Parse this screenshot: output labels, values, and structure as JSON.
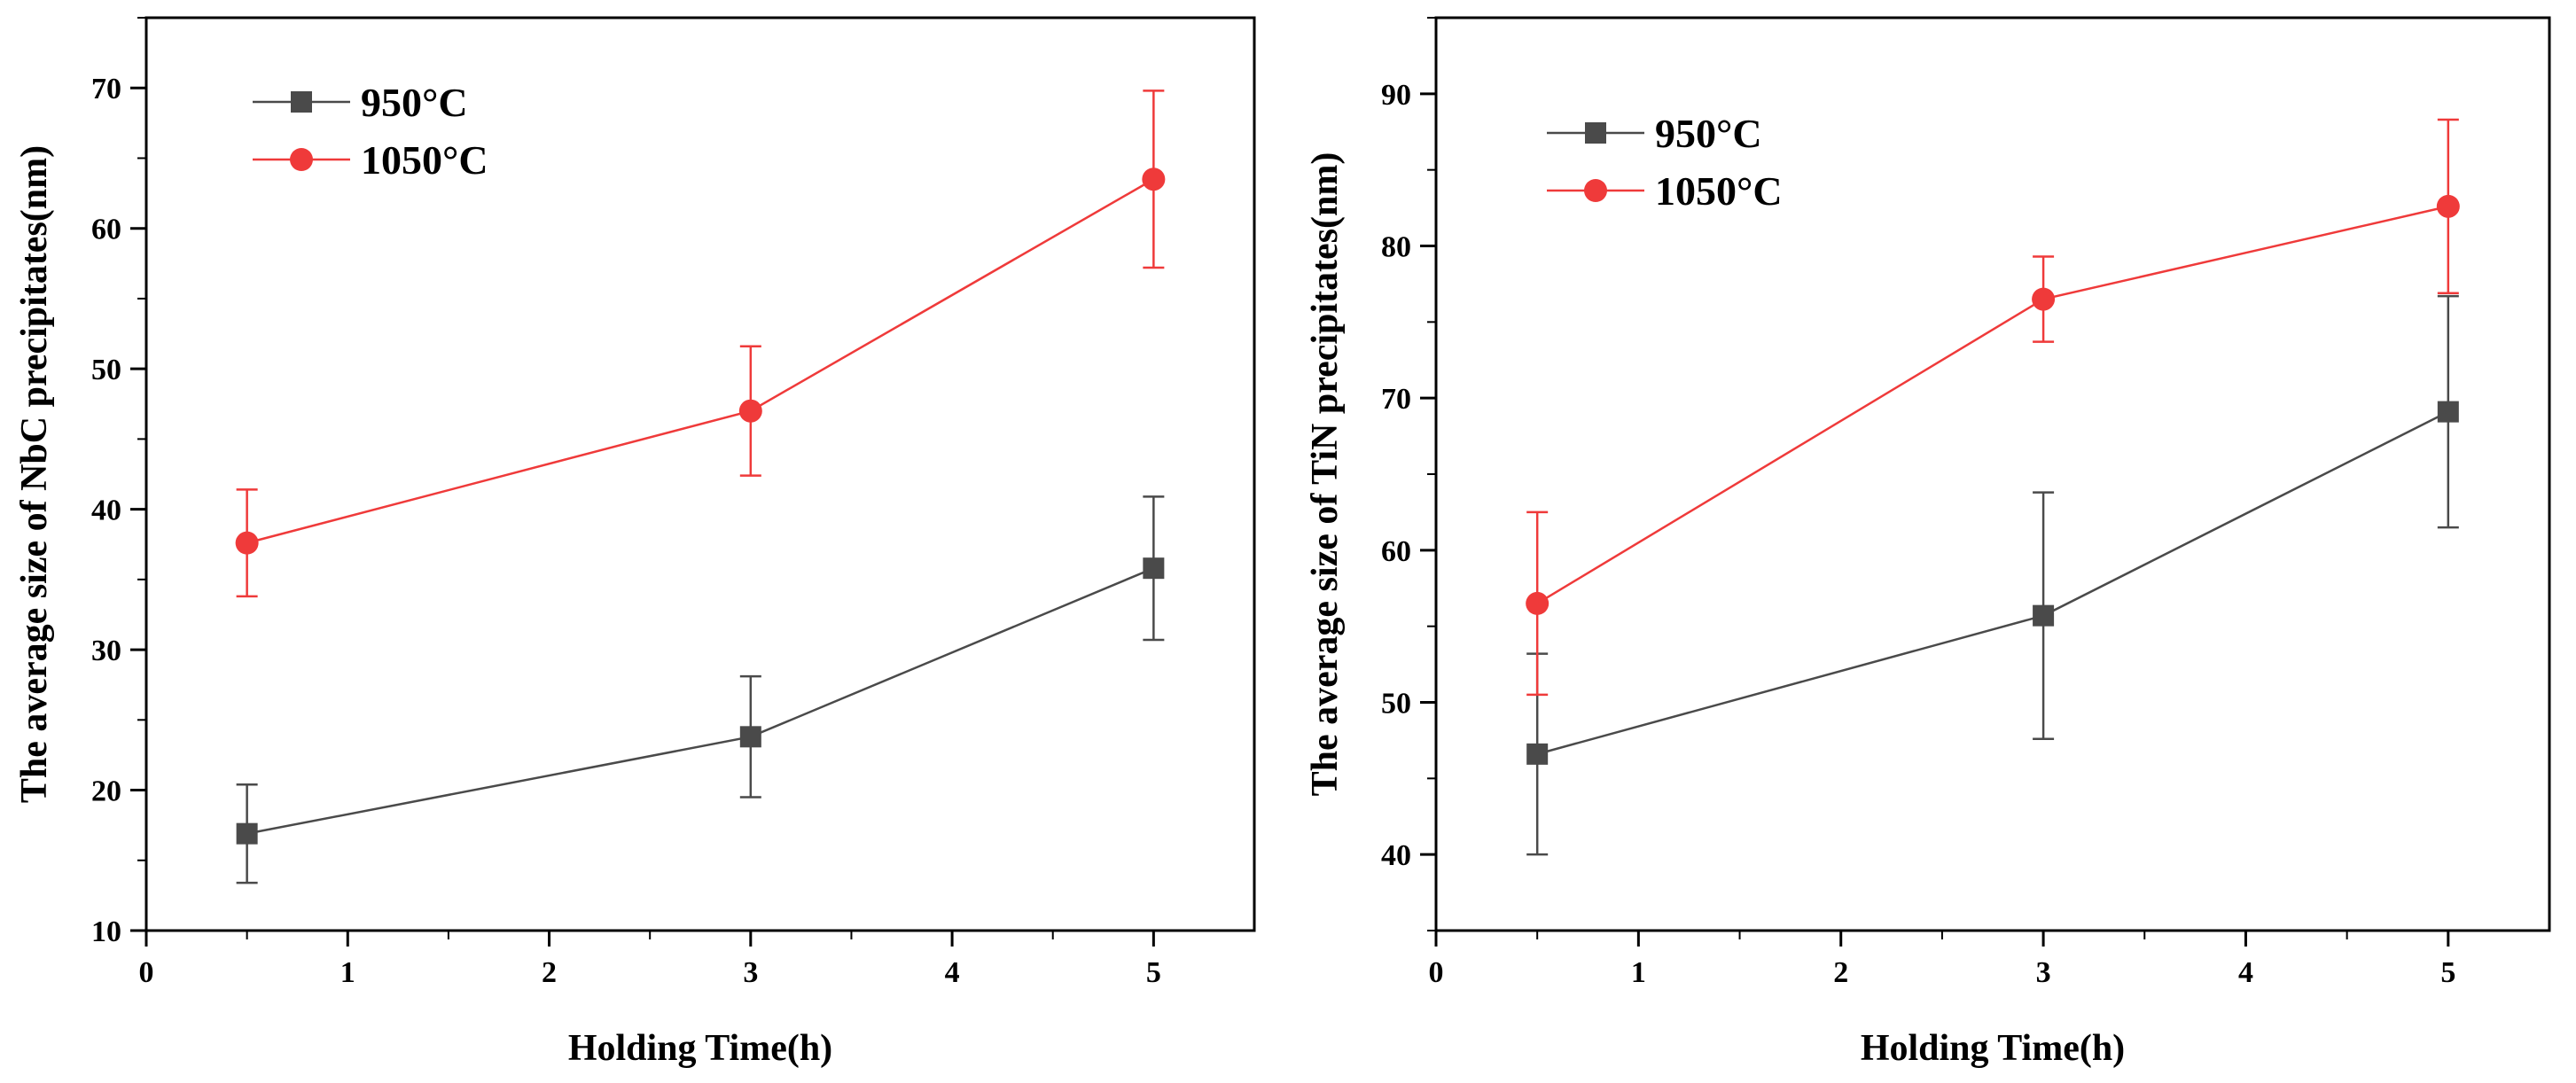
{
  "chart_data": [
    {
      "type": "line",
      "title": "",
      "xlabel": "Holding Time(h)",
      "ylabel": "The average size of NbC precipitates(nm)",
      "xlim": [
        0,
        5.5
      ],
      "ylim": [
        10,
        75
      ],
      "xticks": [
        0,
        1,
        2,
        3,
        4,
        5
      ],
      "yticks": [
        10,
        20,
        30,
        40,
        50,
        60,
        70
      ],
      "grid": false,
      "legend_position": "top-left",
      "x": [
        0.5,
        3,
        5
      ],
      "series": [
        {
          "name": "950°C",
          "color": "#4a4a4a",
          "marker": "square",
          "values": [
            16.9,
            23.8,
            35.8
          ],
          "errors": [
            3.5,
            4.3,
            5.1
          ]
        },
        {
          "name": "1050°C",
          "color": "#ef3a3a",
          "marker": "circle",
          "values": [
            37.6,
            47.0,
            63.5
          ],
          "errors": [
            3.8,
            4.6,
            6.3
          ]
        }
      ]
    },
    {
      "type": "line",
      "title": "",
      "xlabel": "Holding Time(h)",
      "ylabel": "The average size of TiN precipitates(nm)",
      "xlim": [
        0,
        5.5
      ],
      "ylim": [
        35,
        95
      ],
      "xticks": [
        0,
        1,
        2,
        3,
        4,
        5
      ],
      "yticks": [
        40,
        50,
        60,
        70,
        80,
        90
      ],
      "grid": false,
      "legend_position": "top-left",
      "x": [
        0.5,
        3,
        5
      ],
      "series": [
        {
          "name": "950°C",
          "color": "#4a4a4a",
          "marker": "square",
          "values": [
            46.6,
            55.7,
            69.1
          ],
          "errors": [
            6.6,
            8.1,
            7.6
          ]
        },
        {
          "name": "1050°C",
          "color": "#ef3a3a",
          "marker": "circle",
          "values": [
            56.5,
            76.5,
            82.6
          ],
          "errors": [
            6.0,
            2.8,
            5.7
          ]
        }
      ]
    }
  ]
}
